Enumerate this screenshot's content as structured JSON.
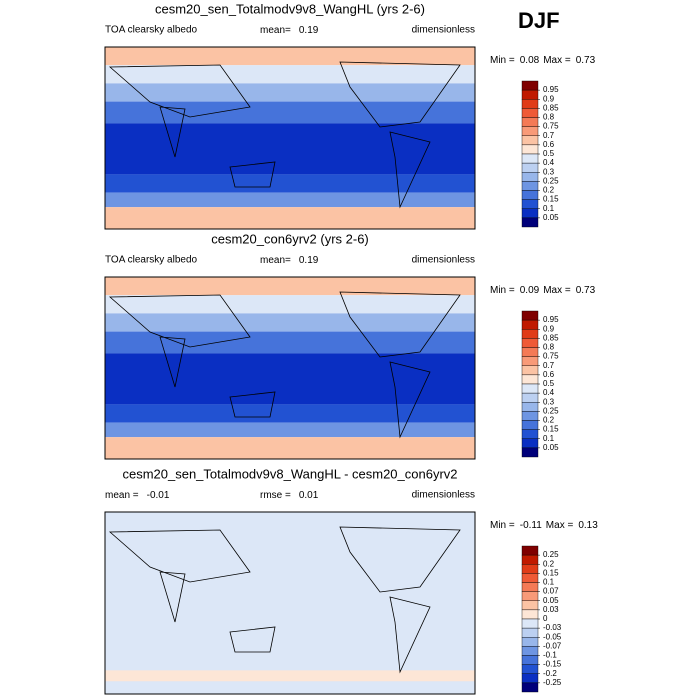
{
  "season": "DJF",
  "panels": [
    {
      "title": "cesm20_sen_Totalmodv9v8_WangHL (yrs 2-6)",
      "field": "TOA clearsky albedo",
      "stats": [
        {
          "label": "mean=",
          "value": 0.19
        }
      ],
      "units": "dimensionless",
      "min": {
        "label": "Min =",
        "value": 0.08
      },
      "max": {
        "label": "Max =",
        "value": 0.73
      },
      "levels": [
        0.95,
        0.9,
        0.85,
        0.8,
        0.75,
        0.7,
        0.6,
        0.5,
        0.4,
        0.3,
        0.25,
        0.2,
        0.15,
        0.1,
        0.05
      ],
      "colors": [
        "#7f0000",
        "#c01a00",
        "#e03c18",
        "#ef5a36",
        "#f47a56",
        "#f89a78",
        "#fbc3a4",
        "#fde6d6",
        "#dce7f7",
        "#bcd0f1",
        "#98b6ea",
        "#6e95e2",
        "#4673da",
        "#2252d2",
        "#0a2fc2",
        "#00007a"
      ]
    },
    {
      "title": "cesm20_con6yrv2 (yrs 2-6)",
      "field": "TOA clearsky albedo",
      "stats": [
        {
          "label": "mean=",
          "value": 0.19
        }
      ],
      "units": "dimensionless",
      "min": {
        "label": "Min =",
        "value": 0.09
      },
      "max": {
        "label": "Max =",
        "value": 0.73
      },
      "levels": [
        0.95,
        0.9,
        0.85,
        0.8,
        0.75,
        0.7,
        0.6,
        0.5,
        0.4,
        0.3,
        0.25,
        0.2,
        0.15,
        0.1,
        0.05
      ],
      "colors": [
        "#7f0000",
        "#c01a00",
        "#e03c18",
        "#ef5a36",
        "#f47a56",
        "#f89a78",
        "#fbc3a4",
        "#fde6d6",
        "#dce7f7",
        "#bcd0f1",
        "#98b6ea",
        "#6e95e2",
        "#4673da",
        "#2252d2",
        "#0a2fc2",
        "#00007a"
      ]
    },
    {
      "title": "cesm20_sen_Totalmodv9v8_WangHL - cesm20_con6yrv2",
      "stats": [
        {
          "label": "mean =",
          "value": -0.01
        },
        {
          "label": "rmse =",
          "value": 0.01
        }
      ],
      "units": "dimensionless",
      "min": {
        "label": "Min =",
        "value": -0.11
      },
      "max": {
        "label": "Max =",
        "value": 0.13
      },
      "levels": [
        0.25,
        0.2,
        0.15,
        0.1,
        0.07,
        0.05,
        0.03,
        0,
        -0.03,
        -0.05,
        -0.07,
        -0.1,
        -0.15,
        -0.2,
        -0.25
      ],
      "colors": [
        "#7f0000",
        "#c01a00",
        "#e03c18",
        "#ef5a36",
        "#f47a56",
        "#f89a78",
        "#fbc3a4",
        "#fde6d6",
        "#dce7f7",
        "#bcd0f1",
        "#98b6ea",
        "#6e95e2",
        "#4673da",
        "#2252d2",
        "#0a2fc2",
        "#00007a"
      ]
    }
  ]
}
